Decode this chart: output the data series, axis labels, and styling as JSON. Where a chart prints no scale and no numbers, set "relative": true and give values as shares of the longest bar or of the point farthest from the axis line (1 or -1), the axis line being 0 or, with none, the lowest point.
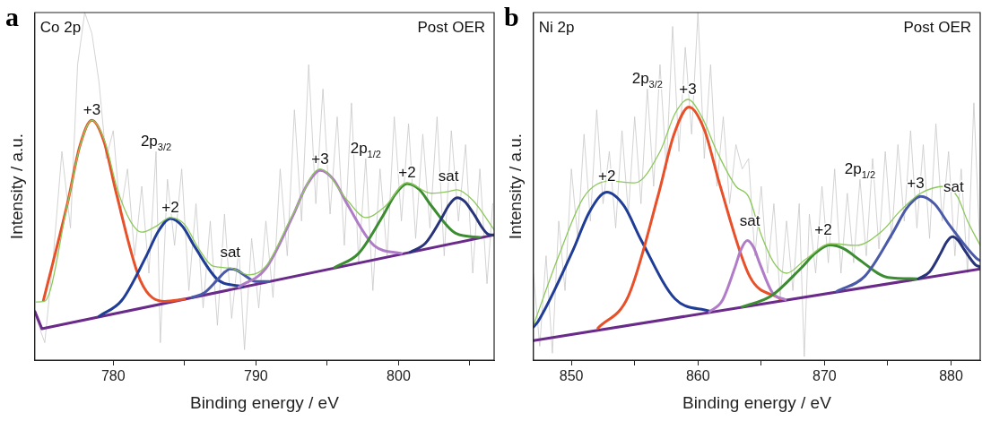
{
  "chart_data": [
    {
      "type": "line",
      "title": "a",
      "xlabel": "Binding energy / eV",
      "ylabel": "Intensity / a.u.",
      "relative": true,
      "xlim": [
        774.5,
        806.7
      ],
      "xticks": [
        780,
        {
          "value": 785,
          "label": null
        },
        790,
        {
          "value": 795,
          "label": null
        },
        800,
        {
          "value": 805,
          "label": null
        }
      ],
      "grid": false,
      "legend": false,
      "marker": "none",
      "line_style": "solid",
      "annotations": [
        "Co 2p",
        "Post OER",
        {
          "text": "+3",
          "x": 778.5,
          "y": 0.69
        },
        {
          "text": "2p$_{3/2}$",
          "x": 783,
          "y": 0.6
        },
        {
          "text": "+2",
          "x": 784,
          "y": 0.41
        },
        {
          "text": "sat",
          "x": 788.2,
          "y": 0.28
        },
        {
          "text": "+3",
          "x": 794.5,
          "y": 0.55
        },
        {
          "text": "2p$_{1/2}$",
          "x": 797.7,
          "y": 0.58
        },
        {
          "text": "+2",
          "x": 800.6,
          "y": 0.51
        },
        {
          "text": "sat",
          "x": 803.5,
          "y": 0.5
        }
      ],
      "series": [
        {
          "color": "#c8c8c8",
          "x": [
            774.6,
            775.2,
            775.8,
            776.4,
            777,
            777.5,
            778,
            778.5,
            779,
            779.5,
            780,
            780.5,
            781,
            781.5,
            782,
            782.5,
            783,
            783.3,
            783.8,
            784.3,
            784.8,
            785.3,
            785.8,
            786.3,
            786.8,
            787.3,
            787.8,
            788.3,
            788.8,
            789.2,
            789.7,
            790.2,
            790.7,
            791.2,
            791.7,
            792.2,
            792.7,
            793.2,
            793.7,
            794.2,
            794.7,
            795.2,
            795.7,
            796.2,
            796.7,
            797.2,
            797.7,
            798.2,
            798.7,
            799.2,
            799.7,
            800.2,
            800.7,
            801.2,
            801.7,
            802.2,
            802.7,
            803.2,
            803.7,
            804.2,
            804.7,
            805.2,
            805.7,
            806.2,
            806.6
          ],
          "values": [
            0.12,
            0.05,
            0.3,
            0.6,
            0.38,
            0.85,
            1.0,
            0.94,
            0.8,
            0.58,
            0.66,
            0.42,
            0.55,
            0.3,
            0.5,
            0.25,
            0.6,
            0.05,
            0.52,
            0.33,
            0.55,
            0.2,
            0.45,
            0.15,
            0.4,
            0.1,
            0.42,
            0.12,
            0.32,
            0.03,
            0.35,
            0.15,
            0.4,
            0.18,
            0.55,
            0.3,
            0.72,
            0.4,
            0.85,
            0.45,
            0.78,
            0.42,
            0.7,
            0.33,
            0.74,
            0.28,
            0.58,
            0.2,
            0.55,
            0.3,
            0.7,
            0.4,
            0.68,
            0.35,
            0.65,
            0.38,
            0.7,
            0.3,
            0.66,
            0.4,
            0.62,
            0.25,
            0.55,
            0.22,
            0.45
          ]
        },
        {
          "color": "#6a2a8a",
          "x": [
            774.5,
            775,
            806.7
          ],
          "values": [
            0.14,
            0.09,
            0.36
          ]
        },
        {
          "color": "#e8502a",
          "x": [
            775.1,
            776.8,
            777.65,
            778.5,
            779.35,
            780.2,
            781.9,
            783.6,
            785
          ],
          "values": [
            0.171,
            0.453,
            0.615,
            0.69,
            0.629,
            0.482,
            0.229,
            0.169,
            0.175
          ]
        },
        {
          "color": "#1f3c96",
          "x": [
            779,
            780.6,
            782.3,
            783.15,
            784,
            784.85,
            785.7,
            787.4,
            789.1
          ],
          "values": [
            0.126,
            0.172,
            0.298,
            0.37,
            0.407,
            0.385,
            0.327,
            0.229,
            0.212
          ]
        },
        {
          "color": "#4a5aa8",
          "x": [
            785.5,
            786.4,
            787.3,
            787.75,
            788.2,
            788.65,
            789.1,
            790,
            790.9
          ],
          "values": [
            0.18,
            0.194,
            0.231,
            0.251,
            0.262,
            0.259,
            0.247,
            0.226,
            0.226
          ]
        },
        {
          "color": "#b07cc8",
          "x": [
            788.8,
            790.7,
            792.6,
            793.55,
            794.5,
            795.45,
            796.4,
            798.3,
            800.2
          ],
          "values": [
            0.21,
            0.264,
            0.416,
            0.502,
            0.546,
            0.519,
            0.449,
            0.329,
            0.307
          ]
        },
        {
          "color": "#3c8c32",
          "x": [
            795.5,
            797.2,
            798.9,
            799.75,
            800.6,
            801.45,
            802.3,
            804,
            805.7
          ],
          "values": [
            0.266,
            0.307,
            0.415,
            0.476,
            0.508,
            0.491,
            0.444,
            0.365,
            0.353
          ]
        },
        {
          "color": "#28347a",
          "x": [
            800.8,
            801.9,
            803,
            803.55,
            804.1,
            804.65,
            805.2,
            806.3,
            806.7
          ],
          "values": [
            0.31,
            0.337,
            0.407,
            0.447,
            0.467,
            0.456,
            0.425,
            0.362,
            0.36
          ]
        },
        {
          "color": "#8cc85a",
          "x": [
            774.6,
            775.2,
            776.8,
            777.7,
            778.5,
            779.4,
            780.3,
            781.2,
            782,
            783,
            784,
            785,
            786,
            787,
            788.2,
            789.5,
            790.7,
            792.6,
            794.5,
            796.4,
            797.7,
            799,
            800.6,
            802.3,
            803.5,
            804.1,
            805.2,
            806.7
          ],
          "values": [
            0.167,
            0.17,
            0.45,
            0.62,
            0.69,
            0.63,
            0.49,
            0.4,
            0.368,
            0.385,
            0.41,
            0.39,
            0.32,
            0.27,
            0.265,
            0.245,
            0.27,
            0.42,
            0.55,
            0.46,
            0.41,
            0.44,
            0.51,
            0.48,
            0.485,
            0.49,
            0.46,
            0.375
          ]
        }
      ]
    },
    {
      "type": "line",
      "title": "b",
      "xlabel": "Binding energy / eV",
      "ylabel": "Intensity / a.u.",
      "relative": true,
      "xlim": [
        847,
        882.3
      ],
      "xticks": [
        850,
        {
          "value": 855,
          "label": null
        },
        860,
        {
          "value": 865,
          "label": null
        },
        870,
        {
          "value": 875,
          "label": null
        },
        880
      ],
      "grid": false,
      "legend": false,
      "marker": "none",
      "line_style": "solid",
      "annotations": [
        "Ni 2p",
        "Post OER",
        {
          "text": "+2",
          "x": 852.8,
          "y": 0.5
        },
        {
          "text": "2p$_{3/2}$",
          "x": 856,
          "y": 0.78
        },
        {
          "text": "+3",
          "x": 859.2,
          "y": 0.75
        },
        {
          "text": "sat",
          "x": 864.1,
          "y": 0.37
        },
        {
          "text": "+2",
          "x": 869.9,
          "y": 0.345
        },
        {
          "text": "2p$_{1/2}$",
          "x": 872.8,
          "y": 0.52
        },
        {
          "text": "+3",
          "x": 877.2,
          "y": 0.48
        },
        {
          "text": "sat",
          "x": 880.2,
          "y": 0.47
        }
      ],
      "series": [
        {
          "color": "#c8c8c8",
          "x": [
            847,
            847.5,
            848,
            848.5,
            849,
            849.5,
            850,
            850.5,
            851,
            851.5,
            852,
            852.5,
            853,
            853.5,
            854,
            854.5,
            855,
            855.5,
            856,
            856.5,
            857,
            857.5,
            858,
            858.5,
            859,
            859.5,
            860,
            860.5,
            861,
            861.5,
            862,
            862.5,
            863,
            863.5,
            864,
            864.5,
            865,
            865.5,
            866,
            866.5,
            867,
            867.5,
            868,
            868.4,
            868.8,
            869.3,
            869.8,
            870.3,
            870.8,
            871.3,
            871.8,
            872.3,
            872.8,
            873.3,
            873.8,
            874.3,
            874.8,
            875.3,
            875.8,
            876.3,
            876.8,
            877.3,
            877.8,
            878.3,
            878.8,
            879.3,
            879.8,
            880.3,
            880.8,
            881.3,
            881.8,
            882.3
          ],
          "values": [
            0.25,
            0.04,
            0.3,
            0.02,
            0.4,
            0.2,
            0.55,
            0.35,
            0.65,
            0.4,
            0.72,
            0.45,
            0.6,
            0.38,
            0.66,
            0.42,
            0.7,
            0.45,
            0.78,
            0.5,
            0.85,
            0.55,
            0.96,
            0.6,
            0.9,
            0.65,
            1.0,
            0.58,
            0.85,
            0.5,
            0.7,
            0.45,
            0.62,
            0.55,
            0.58,
            0.3,
            0.5,
            0.25,
            0.45,
            0.18,
            0.4,
            0.2,
            0.45,
            0.01,
            0.42,
            0.25,
            0.5,
            0.28,
            0.55,
            0.25,
            0.48,
            0.28,
            0.52,
            0.3,
            0.58,
            0.32,
            0.6,
            0.35,
            0.62,
            0.4,
            0.66,
            0.38,
            0.62,
            0.35,
            0.68,
            0.4,
            0.6,
            0.3,
            0.55,
            0.25,
            0.74,
            0.3
          ]
        },
        {
          "color": "#6a2a8a",
          "x": [
            847,
            882.3
          ],
          "values": [
            0.056,
            0.262
          ]
        },
        {
          "color": "#1f3c96",
          "x": [
            847,
            847.4,
            850.1,
            851.45,
            852.8,
            854.15,
            855.5,
            858.2,
            860.9
          ],
          "values": [
            0.095,
            0.113,
            0.314,
            0.428,
            0.483,
            0.444,
            0.346,
            0.176,
            0.141
          ]
        },
        {
          "color": "#e8502a",
          "x": [
            852.1,
            854.5,
            856.9,
            858.1,
            859.3,
            860.5,
            861.7,
            864.1,
            866.5
          ],
          "values": [
            0.092,
            0.184,
            0.48,
            0.649,
            0.728,
            0.663,
            0.508,
            0.24,
            0.176
          ]
        },
        {
          "color": "#b07cc8",
          "x": [
            860.9,
            861.9,
            862.9,
            863.4,
            863.9,
            864.4,
            864.9,
            865.9,
            866.9
          ],
          "values": [
            0.139,
            0.17,
            0.264,
            0.318,
            0.344,
            0.324,
            0.276,
            0.193,
            0.174
          ]
        },
        {
          "color": "#3c8c32",
          "x": [
            863.5,
            865.8,
            868.1,
            869.25,
            870.4,
            871.55,
            872.7,
            875,
            877.3
          ],
          "values": [
            0.153,
            0.185,
            0.263,
            0.307,
            0.331,
            0.32,
            0.29,
            0.238,
            0.234
          ]
        },
        {
          "color": "#4a5aa8",
          "x": [
            871,
            873.2,
            875.4,
            876.5,
            877.6,
            878.7,
            879.8,
            882,
            882.3
          ],
          "values": [
            0.198,
            0.242,
            0.367,
            0.437,
            0.471,
            0.449,
            0.392,
            0.293,
            0.286
          ]
        },
        {
          "color": "#28347a",
          "x": [
            877.4,
            878.3,
            879.2,
            879.65,
            880.1,
            880.55,
            881,
            881.9,
            882.3
          ],
          "values": [
            0.234,
            0.254,
            0.309,
            0.34,
            0.355,
            0.345,
            0.32,
            0.275,
            0.268
          ]
        },
        {
          "color": "#8cc85a",
          "x": [
            847,
            849,
            851,
            853,
            855,
            857,
            858.2,
            859.2,
            860.3,
            861.5,
            863,
            864,
            865,
            866,
            867,
            868.5,
            870.5,
            872.5,
            874.5,
            876,
            877.6,
            879.5,
            880.5,
            881.3,
            882.3
          ],
          "values": [
            0.1,
            0.3,
            0.47,
            0.515,
            0.51,
            0.6,
            0.71,
            0.75,
            0.7,
            0.6,
            0.5,
            0.47,
            0.36,
            0.28,
            0.25,
            0.29,
            0.335,
            0.33,
            0.37,
            0.43,
            0.48,
            0.5,
            0.47,
            0.4,
            0.33
          ]
        }
      ]
    }
  ]
}
